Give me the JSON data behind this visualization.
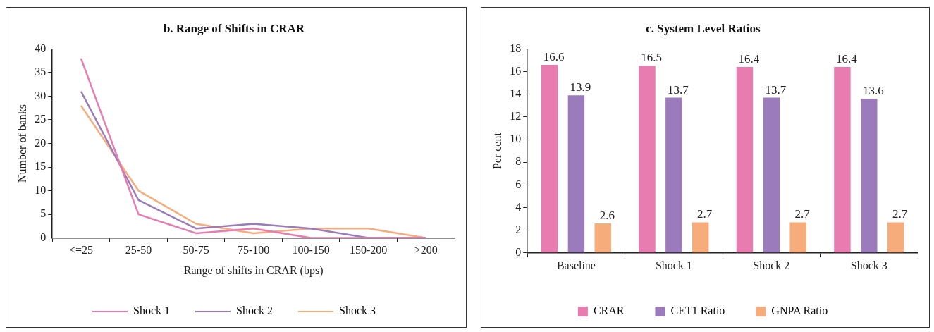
{
  "chart_data": [
    {
      "type": "line",
      "title": "b. Range of Shifts in CRAR",
      "xlabel": "Range of shifts in CRAR (bps)",
      "ylabel": "Number of banks",
      "categories": [
        "<=25",
        "25-50",
        "50-75",
        "75-100",
        "100-150",
        "150-200",
        ">200"
      ],
      "series": [
        {
          "name": "Shock 1",
          "color": "#e87cb0",
          "values": [
            38,
            5,
            1,
            2,
            0,
            0,
            0
          ]
        },
        {
          "name": "Shock 2",
          "color": "#9b7bbb",
          "values": [
            31,
            8,
            2,
            3,
            2,
            0,
            0
          ]
        },
        {
          "name": "Shock 3",
          "color": "#f7ac7c",
          "values": [
            28,
            10,
            3,
            1,
            2,
            2,
            0
          ]
        }
      ],
      "ylim": [
        0,
        40
      ],
      "yticks": [
        0,
        5,
        10,
        15,
        20,
        25,
        30,
        35,
        40
      ],
      "grid": false,
      "legend": "bottom",
      "marker": "none",
      "line_style": "solid"
    },
    {
      "type": "bar",
      "title": "c. System Level Ratios",
      "ylabel": "Per cent",
      "categories": [
        "Baseline",
        "Shock 1",
        "Shock 2",
        "Shock 3"
      ],
      "series": [
        {
          "name": "CRAR",
          "color": "#e87cb0",
          "values": [
            16.6,
            16.5,
            16.4,
            16.4
          ]
        },
        {
          "name": "CET1 Ratio",
          "color": "#9b7bbb",
          "values": [
            13.9,
            13.7,
            13.7,
            13.6
          ]
        },
        {
          "name": "GNPA Ratio",
          "color": "#f7ac7c",
          "values": [
            2.6,
            2.7,
            2.7,
            2.7
          ]
        }
      ],
      "ylim": [
        0,
        18
      ],
      "yticks": [
        0,
        2,
        4,
        6,
        8,
        10,
        12,
        14,
        16,
        18
      ],
      "grid": false,
      "legend": "bottom",
      "data_labels": true
    }
  ]
}
